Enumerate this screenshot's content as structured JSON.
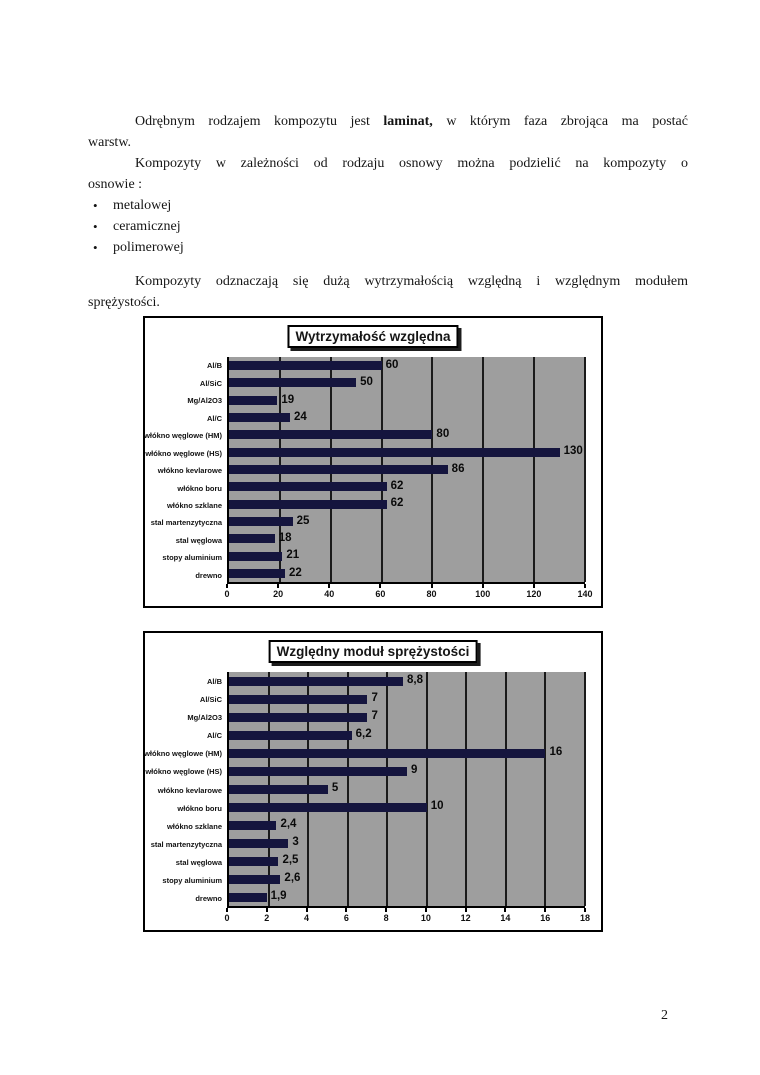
{
  "page": {
    "number": "2"
  },
  "document": {
    "paragraph1": {
      "line1_pre": "Odrębnym rodzajem kompozytu jest ",
      "line1_bold": "laminat,",
      "line1_post": " w którym faza zbrojąca ma postać",
      "line2": "warstw."
    },
    "paragraph2": {
      "line1": "Kompozyty w zależności od rodzaju osnowy można podzielić na kompozyty o",
      "line2": "osnowie :"
    },
    "bullets": [
      "metalowej",
      "ceramicznej",
      "polimerowej"
    ],
    "bullet_glyph": "•",
    "paragraph3": {
      "line1": "Kompozyty odznaczają się dużą wytrzymałością względną i względnym modułem",
      "line2": "sprężystości."
    }
  },
  "chart_data": [
    {
      "type": "bar",
      "orientation": "horizontal",
      "title": "Wytrzymałość względna",
      "categories": [
        "Al/B",
        "Al/SiC",
        "Mg/Al2O3",
        "Al/C",
        "włókno węglowe (HM)",
        "włókno węglowe (HS)",
        "włókno kevlarowe",
        "włókno boru",
        "włókno szklane",
        "stal martenzytyczna",
        "stal węglowa",
        "stopy aluminium",
        "drewno"
      ],
      "values": [
        60,
        50,
        19,
        24,
        80,
        130,
        86,
        62,
        62,
        25,
        18,
        21,
        22
      ],
      "value_labels": [
        "60",
        "50",
        "19",
        "24",
        "80",
        "130",
        "86",
        "62",
        "62",
        "25",
        "18",
        "21",
        "22"
      ],
      "xlim": [
        0,
        140
      ],
      "xticks": [
        0,
        20,
        40,
        60,
        80,
        100,
        120,
        140
      ],
      "grid": "vertical",
      "legend": "none",
      "plot_bg": "#9e9e9e",
      "bar_color": "#15153e"
    },
    {
      "type": "bar",
      "orientation": "horizontal",
      "title": "Względny moduł sprężystości",
      "categories": [
        "Al/B",
        "Al/SiC",
        "Mg/Al2O3",
        "Al/C",
        "włókno węglowe (HM)",
        "włókno węglowe (HS)",
        "włókno kevlarowe",
        "włókno boru",
        "włókno szklane",
        "stal martenzytyczna",
        "stal węglowa",
        "stopy aluminium",
        "drewno"
      ],
      "values": [
        8.8,
        7,
        7,
        6.2,
        16,
        9,
        5,
        10,
        2.4,
        3,
        2.5,
        2.6,
        1.9
      ],
      "value_labels": [
        "8,8",
        "7",
        "7",
        "6,2",
        "16",
        "9",
        "5",
        "10",
        "2,4",
        "3",
        "2,5",
        "2,6",
        "1,9"
      ],
      "xlim": [
        0,
        18
      ],
      "xticks": [
        0,
        2,
        4,
        6,
        8,
        10,
        12,
        14,
        16,
        18
      ],
      "grid": "vertical",
      "legend": "none",
      "plot_bg": "#9e9e9e",
      "bar_color": "#15153e"
    }
  ]
}
